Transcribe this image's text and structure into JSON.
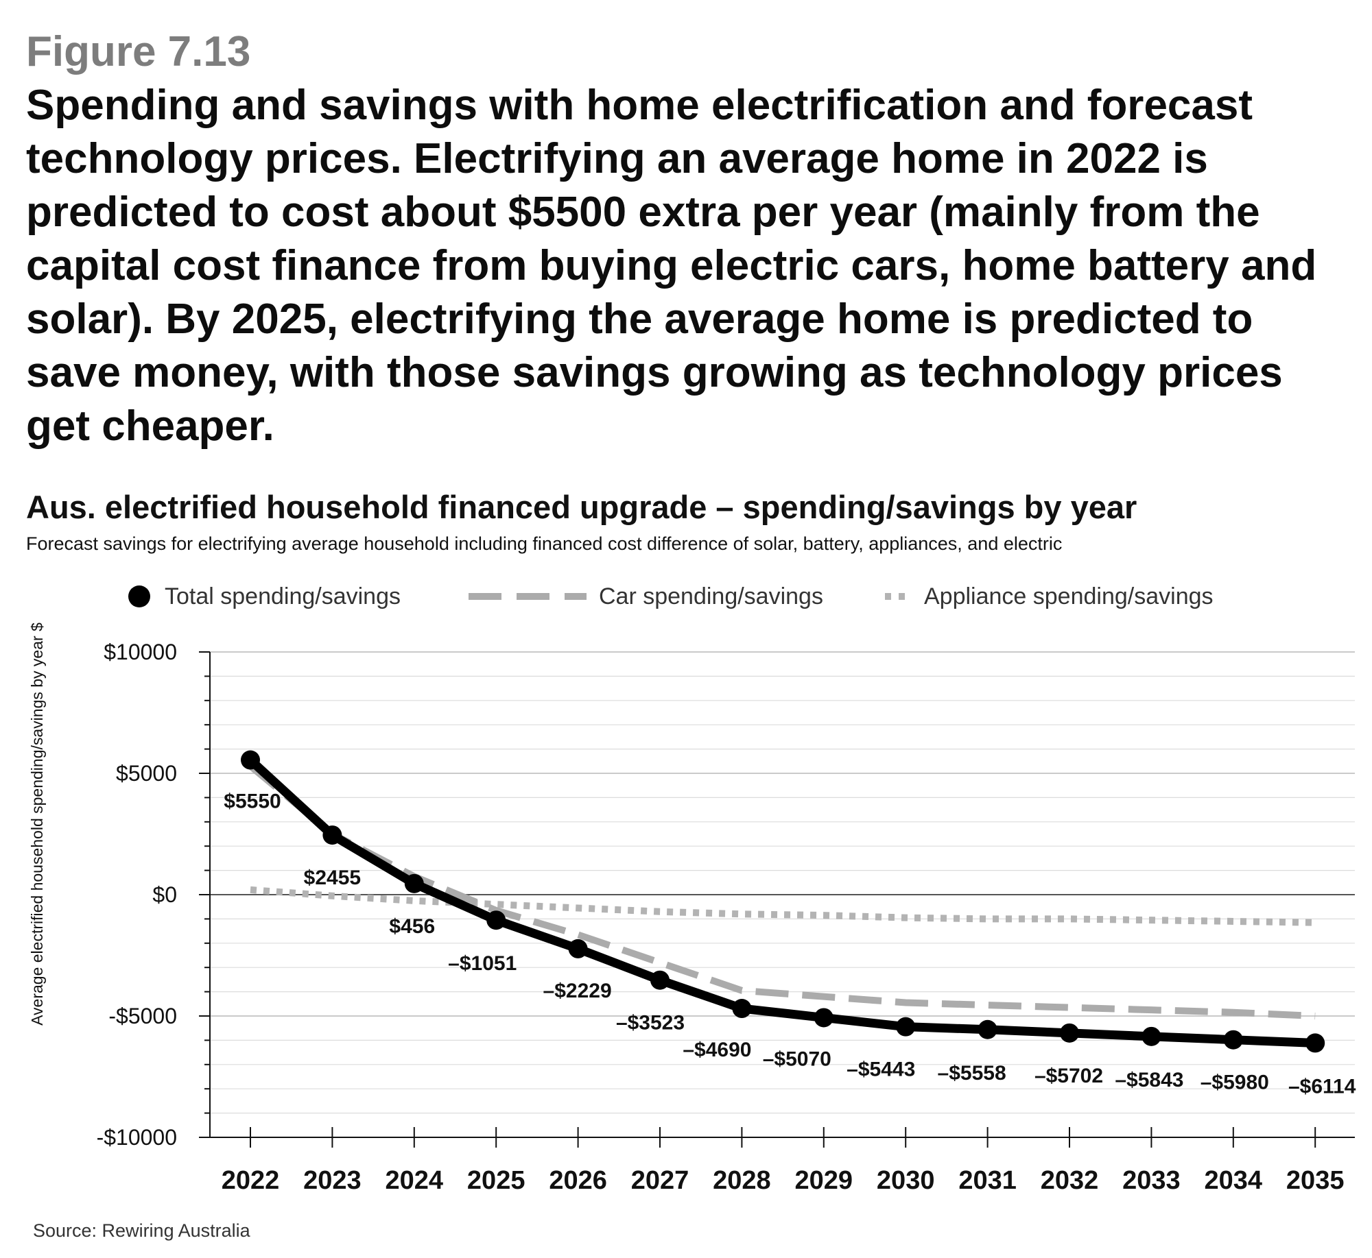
{
  "figure_label": "Figure 7.13",
  "caption": "Spending and savings with home electrification and forecast technology prices. Electrifying an average home in 2022 is predicted to cost about $5500 extra per year (mainly from the capital cost finance from buying electric cars, home battery and solar). By 2025, electrifying the average home is predicted to save money, with those savings growing as technology prices get cheaper.",
  "source": "Source: Rewiring Australia",
  "colors": {
    "total": "#000000",
    "car": "#ababab",
    "appliance": "#b3b3b3",
    "grid": "#dcdcdc",
    "zero_line": "#555555"
  },
  "chart_data": {
    "type": "line",
    "title": "Aus. electrified household financed upgrade – spending/savings by year",
    "subtitle": "Forecast savings for electrifying average household including financed cost difference of solar, battery, appliances, and electric",
    "xlabel": "",
    "ylabel": "Average electrified household spending/savings by year $",
    "ylim": [
      -10000,
      10000
    ],
    "yticks": [
      10000,
      5000,
      0,
      -5000,
      -10000
    ],
    "ytick_labels": [
      "$10000",
      "$5000",
      "$0",
      "-$5000",
      "-$10000"
    ],
    "grid": true,
    "legend_position": "top",
    "categories": [
      "2022",
      "2023",
      "2024",
      "2025",
      "2026",
      "2027",
      "2028",
      "2029",
      "2030",
      "2031",
      "2032",
      "2033",
      "2034",
      "2035"
    ],
    "series": [
      {
        "name": "Total spending/savings",
        "style": "solid-markers",
        "values": [
          5550,
          2455,
          456,
          -1051,
          -2229,
          -3523,
          -4690,
          -5070,
          -5443,
          -5558,
          -5702,
          -5843,
          -5980,
          -6114
        ]
      },
      {
        "name": "Car spending/savings",
        "style": "dashed",
        "values": [
          5300,
          2500,
          750,
          -650,
          -1650,
          -2800,
          -3950,
          -4200,
          -4450,
          -4550,
          -4650,
          -4750,
          -4850,
          -5000
        ]
      },
      {
        "name": "Appliance spending/savings",
        "style": "dotted",
        "values": [
          200,
          -50,
          -250,
          -400,
          -550,
          -700,
          -800,
          -850,
          -950,
          -1000,
          -1000,
          -1050,
          -1100,
          -1150
        ]
      }
    ],
    "data_labels": [
      "$5550",
      "$2455",
      "$456",
      "–$1051",
      "–$2229",
      "–$3523",
      "–$4690",
      "–$5070",
      "–$5443",
      "–$5558",
      "–$5702",
      "–$5843",
      "–$5980",
      "–$6114"
    ]
  }
}
